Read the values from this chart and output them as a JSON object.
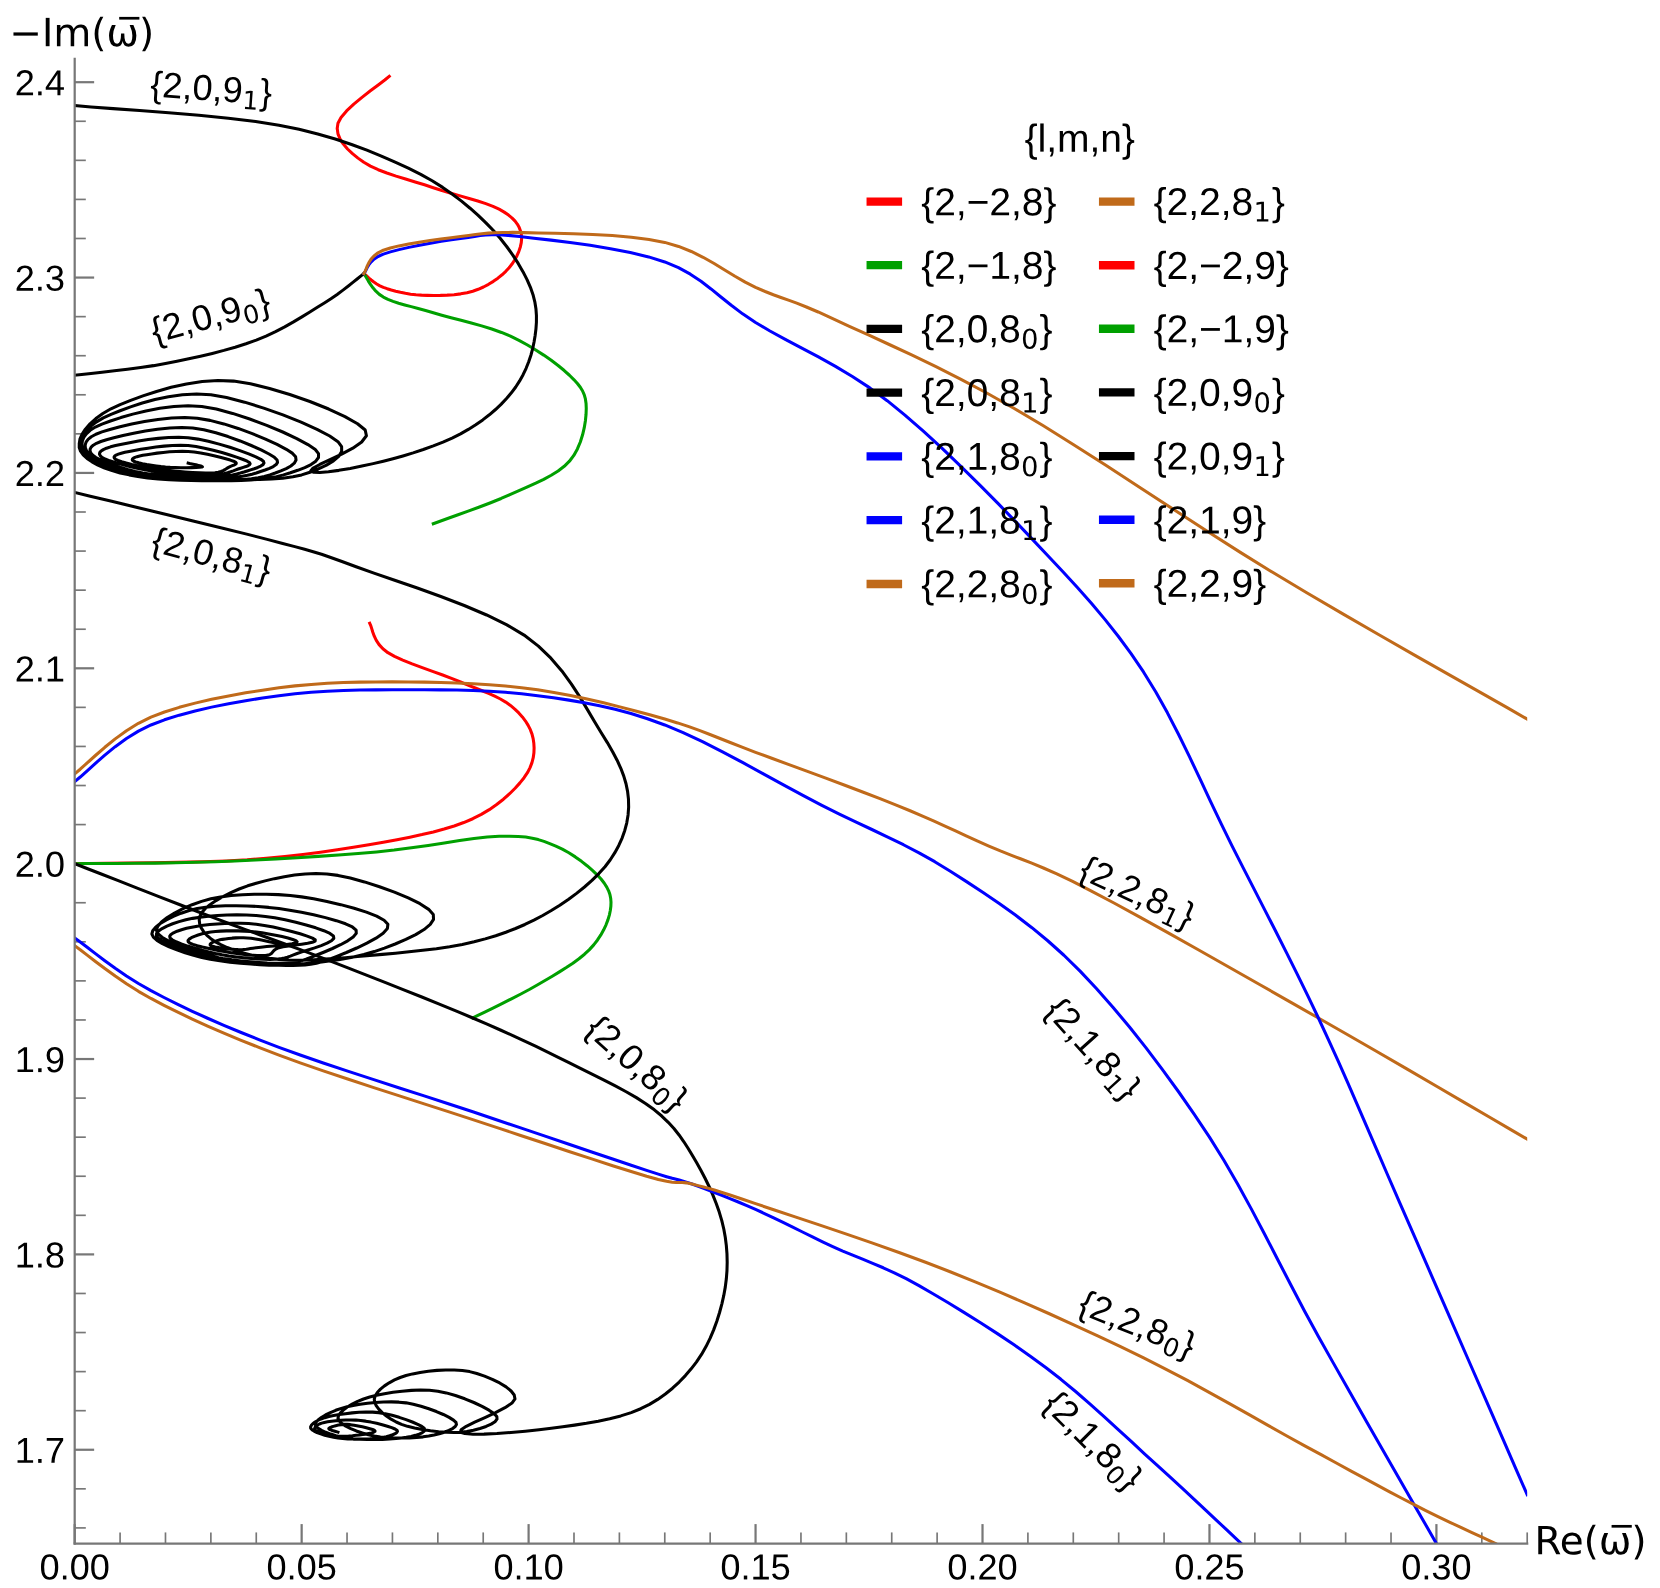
{
  "chart_data": {
    "type": "line",
    "xlabel": "Re(ω̅)",
    "ylabel": "−Im(ω̅)",
    "legend_title": "{l,m,n}",
    "legend": "top right",
    "grid": false,
    "marker": "none",
    "line_style": "solid",
    "xlim": [
      0,
      0.32
    ],
    "ylim": [
      1.652,
      2.412
    ],
    "xticks": [
      {
        "value": 0,
        "label": "0.00"
      },
      {
        "value": 0.05,
        "label": "0.05"
      },
      {
        "value": 0.1,
        "label": "0.10"
      },
      {
        "value": 0.15,
        "label": "0.15"
      },
      {
        "value": 0.2,
        "label": "0.20"
      },
      {
        "value": 0.25,
        "label": "0.25"
      },
      {
        "value": 0.3,
        "label": "0.30"
      }
    ],
    "yticks": [
      1.7,
      1.8,
      1.9,
      {
        "value": 2.0,
        "label": "2.0"
      },
      2.1,
      2.2,
      2.3,
      2.4
    ],
    "series": [
      {
        "name": "{2,−2,8}",
        "color": "#ff0000",
        "x": [
          0.065,
          0.069,
          0.085,
          0.096,
          0.101,
          0.099,
          0.0877,
          0.068,
          0.038,
          0.0
        ],
        "values": [
          2.123,
          2.108,
          2.093,
          2.081,
          2.064,
          2.044,
          2.023,
          2.011,
          2.002,
          2.0
        ]
      },
      {
        "name": "{2,−1,8}",
        "color": "#00a000",
        "x": [
          0.0,
          0.031,
          0.0665,
          0.0935,
          0.106,
          0.116,
          0.118,
          0.1134,
          0.102,
          0.0877
        ],
        "values": [
          2.0,
          2.001,
          2.006,
          2.014,
          2.009,
          1.992,
          1.976,
          1.956,
          1.938,
          1.921
        ]
      },
      {
        "name": "{2,0,8$_{0}$}",
        "color": "#000000",
        "x": [
          0.0,
          0.031,
          0.0565,
          0.0877,
          0.109,
          0.1277,
          0.137,
          0.143,
          0.143,
          0.137,
          0.1247,
          0.105,
          0.085,
          0.097,
          0.087,
          0.073,
          0.066,
          0.072,
          0.085,
          0.093,
          0.08,
          0.065,
          0.058,
          0.066,
          0.078,
          0.084,
          0.073,
          0.06,
          0.053,
          0.06,
          0.072,
          0.077,
          0.067,
          0.056,
          0.052,
          0.058,
          0.067,
          0.071,
          0.063,
          0.055,
          0.053,
          0.058,
          0.064,
          0.066,
          0.06,
          0.056,
          0.058
        ],
        "values": [
          2.0,
          1.972,
          1.95,
          1.921,
          1.898,
          1.874,
          1.847,
          1.813,
          1.779,
          1.745,
          1.721,
          1.711,
          1.709,
          1.726,
          1.74,
          1.738,
          1.726,
          1.713,
          1.709,
          1.717,
          1.73,
          1.727,
          1.716,
          1.707,
          1.707,
          1.714,
          1.724,
          1.722,
          1.713,
          1.706,
          1.706,
          1.711,
          1.719,
          1.717,
          1.711,
          1.706,
          1.706,
          1.71,
          1.715,
          1.714,
          1.71,
          1.707,
          1.708,
          1.71,
          1.713,
          1.711,
          1.709
        ]
      },
      {
        "name": "{2,0,8$_{1}$}",
        "color": "#000000",
        "x": [
          0.0,
          0.0424,
          0.062,
          0.099,
          0.116,
          0.122,
          0.118,
          0.105,
          0.088,
          0.065,
          0.045,
          0.031,
          0.028,
          0.04,
          0.058,
          0.079,
          0.066,
          0.045,
          0.03,
          0.018,
          0.03,
          0.05,
          0.069,
          0.056,
          0.045,
          0.028,
          0.017,
          0.027,
          0.045,
          0.062,
          0.052,
          0.044,
          0.029,
          0.018,
          0.026,
          0.042,
          0.057,
          0.049,
          0.043,
          0.031,
          0.021,
          0.027,
          0.04,
          0.053,
          0.045,
          0.042,
          0.033,
          0.025,
          0.03,
          0.04,
          0.049,
          0.04,
          0.036,
          0.03,
          0.032,
          0.038,
          0.045
        ],
        "values": [
          2.19,
          2.166,
          2.152,
          2.117,
          2.067,
          2.033,
          2.002,
          1.976,
          1.96,
          1.953,
          1.951,
          1.96,
          1.975,
          1.99,
          1.994,
          1.974,
          1.955,
          1.948,
          1.953,
          1.966,
          1.982,
          1.983,
          1.969,
          1.951,
          1.948,
          1.952,
          1.964,
          1.977,
          1.977,
          1.966,
          1.952,
          1.949,
          1.953,
          1.963,
          1.972,
          1.973,
          1.963,
          1.954,
          1.951,
          1.954,
          1.962,
          1.968,
          1.969,
          1.961,
          1.957,
          1.953,
          1.955,
          1.96,
          1.965,
          1.965,
          1.96,
          1.957,
          1.956,
          1.958,
          1.961,
          1.962,
          1.959
        ]
      },
      {
        "name": "{2,1,8$_{0}$}",
        "color": "#0000ff",
        "x": [
          0.0,
          0.0168,
          0.045,
          0.0877,
          0.126,
          0.136,
          0.15,
          0.167,
          0.186,
          0.214,
          0.2385,
          0.257
        ],
        "values": [
          1.962,
          1.935,
          1.906,
          1.873,
          1.843,
          1.836,
          1.823,
          1.804,
          1.784,
          1.742,
          1.692,
          1.652
        ]
      },
      {
        "name": "{2,1,8$_{1}$}",
        "color": "#0000ff",
        "x": [
          0.0,
          0.0168,
          0.045,
          0.0735,
          0.102,
          0.13,
          0.1645,
          0.193,
          0.2215,
          0.25,
          0.274,
          0.3
        ],
        "values": [
          2.042,
          2.071,
          2.086,
          2.089,
          2.086,
          2.071,
          2.03,
          1.996,
          1.945,
          1.86,
          1.758,
          1.652
        ]
      },
      {
        "name": "{2,2,8$_{0}$}",
        "color": "#c06a1a",
        "x": [
          0.0,
          0.0168,
          0.045,
          0.0877,
          0.126,
          0.136,
          0.15,
          0.193,
          0.2355,
          0.271,
          0.295,
          0.313
        ],
        "values": [
          1.958,
          1.931,
          1.902,
          1.869,
          1.84,
          1.836,
          1.826,
          1.791,
          1.747,
          1.702,
          1.672,
          1.652
        ]
      },
      {
        "name": "{2,2,8$_{1}$}",
        "color": "#c06a1a",
        "x": [
          0.0,
          0.0168,
          0.045,
          0.0735,
          0.102,
          0.13,
          0.15,
          0.181,
          0.2014,
          0.224,
          0.274,
          0.32
        ],
        "values": [
          2.046,
          2.075,
          2.09,
          2.093,
          2.089,
          2.074,
          2.057,
          2.03,
          2.009,
          1.986,
          1.921,
          1.859
        ]
      },
      {
        "name": "{2,−2,9}",
        "color": "#ff0000",
        "x": [
          0.0693,
          0.058,
          0.0637,
          0.079,
          0.0935,
          0.0984,
          0.0957,
          0.0877,
          0.0764,
          0.068,
          0.0637
        ],
        "values": [
          2.403,
          2.379,
          2.359,
          2.346,
          2.335,
          2.322,
          2.305,
          2.293,
          2.291,
          2.295,
          2.302
        ]
      },
      {
        "name": "{2,−1,9}",
        "color": "#00a000",
        "x": [
          0.0637,
          0.068,
          0.079,
          0.096,
          0.109,
          0.1127,
          0.109,
          0.096,
          0.079
        ],
        "values": [
          2.302,
          2.29,
          2.282,
          2.27,
          2.25,
          2.233,
          2.206,
          2.189,
          2.174
        ]
      },
      {
        "name": "{2,0,9$_{0}$}",
        "color": "#000000",
        "x": [
          0.0,
          0.02,
          0.04,
          0.055,
          0.0637
        ],
        "values": [
          2.25,
          2.256,
          2.268,
          2.287,
          2.302
        ]
      },
      {
        "name": "{2,0,9$_{1}$}",
        "color": "#000000",
        "x": [
          0.0,
          0.045,
          0.0735,
          0.0906,
          0.1004,
          0.1012,
          0.0962,
          0.085,
          0.068,
          0.052,
          0.064,
          0.035,
          0.01,
          0.001,
          0.01,
          0.03,
          0.05,
          0.058,
          0.03,
          0.008,
          0.001,
          0.01,
          0.03,
          0.046,
          0.053,
          0.028,
          0.006,
          0.002,
          0.012,
          0.03,
          0.043,
          0.048,
          0.027,
          0.006,
          0.003,
          0.014,
          0.03,
          0.04,
          0.044,
          0.026,
          0.007,
          0.004,
          0.015,
          0.03,
          0.038,
          0.041,
          0.025,
          0.009,
          0.006,
          0.017,
          0.03,
          0.036,
          0.038,
          0.025,
          0.012,
          0.009,
          0.018,
          0.03,
          0.034,
          0.035,
          0.025,
          0.015,
          0.013,
          0.02,
          0.028,
          0.025
        ],
        "values": [
          2.388,
          2.378,
          2.356,
          2.328,
          2.295,
          2.267,
          2.241,
          2.22,
          2.206,
          2.201,
          2.222,
          2.247,
          2.235,
          2.215,
          2.201,
          2.197,
          2.199,
          2.216,
          2.24,
          2.23,
          2.213,
          2.2,
          2.196,
          2.199,
          2.212,
          2.234,
          2.225,
          2.211,
          2.199,
          2.196,
          2.199,
          2.21,
          2.228,
          2.221,
          2.21,
          2.199,
          2.197,
          2.2,
          2.208,
          2.223,
          2.217,
          2.209,
          2.2,
          2.198,
          2.201,
          2.207,
          2.218,
          2.214,
          2.208,
          2.201,
          2.199,
          2.202,
          2.206,
          2.214,
          2.211,
          2.207,
          2.202,
          2.2,
          2.203,
          2.206,
          2.211,
          2.209,
          2.206,
          2.203,
          2.203,
          2.205
        ]
      },
      {
        "name": "{2,1,9}",
        "color": "#0000ff",
        "x": [
          0.0637,
          0.068,
          0.085,
          0.098,
          0.13,
          0.15,
          0.179,
          0.211,
          0.2355,
          0.255,
          0.274,
          0.292,
          0.32
        ],
        "values": [
          2.302,
          2.312,
          2.32,
          2.321,
          2.308,
          2.277,
          2.237,
          2.166,
          2.098,
          2.009,
          1.921,
          1.826,
          1.677
        ]
      },
      {
        "name": "{2,2,9}",
        "color": "#c06a1a",
        "x": [
          0.0637,
          0.068,
          0.085,
          0.099,
          0.13,
          0.15,
          0.167,
          0.207,
          0.264,
          0.32
        ],
        "values": [
          2.302,
          2.314,
          2.321,
          2.323,
          2.318,
          2.295,
          2.279,
          2.233,
          2.149,
          2.074
        ]
      }
    ],
    "annotations": [
      "{2,0,9$_{1}$}",
      "{2,0,9$_{0}$}",
      "{2,0,8$_{1}$}",
      "{2,0,8$_{0}$}",
      "{2,2,8$_{1}$}",
      "{2,1,8$_{1}$}",
      "{2,2,8$_{0}$}",
      "{2,1,8$_{0}$}"
    ]
  }
}
